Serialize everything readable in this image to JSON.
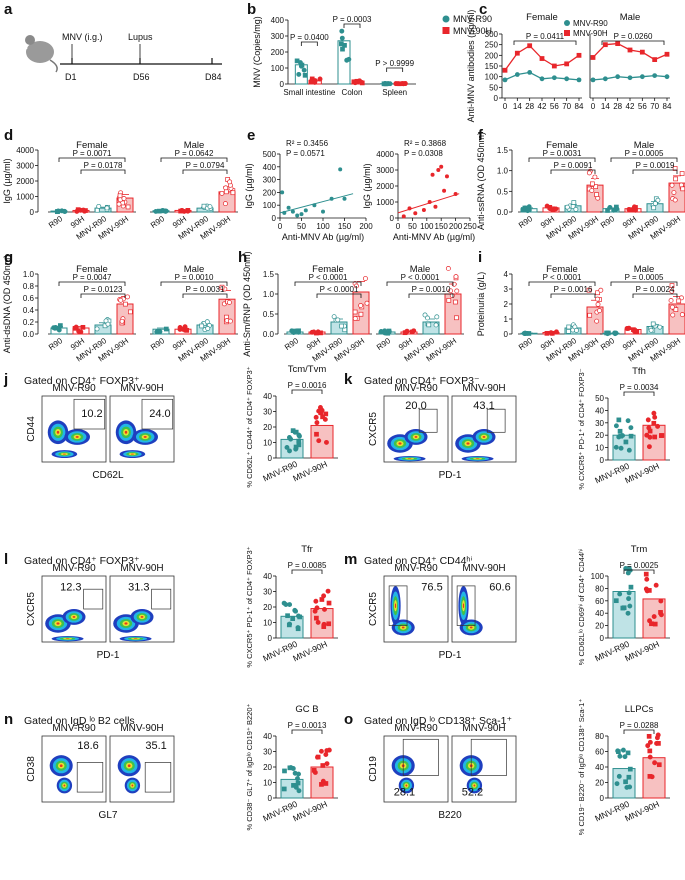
{
  "colors": {
    "r90": "#2e8f8f",
    "h90": "#e8262b",
    "r90_fill": "#bfe3e6",
    "h90_fill": "#f7c1c1"
  },
  "panel_a": {
    "label": "a",
    "route": "MNV (i.g.)",
    "event": "Lupus",
    "days": [
      "D1",
      "D56",
      "D84"
    ]
  },
  "chart_data": [
    {
      "id": "b",
      "label": "b",
      "type": "bar",
      "ylabel": "MNV (Copies/mg)",
      "ylim": [
        0,
        400
      ],
      "yticks": [
        "0",
        "100",
        "200",
        "300",
        "400"
      ],
      "categories": [
        "Small intestine",
        "Colon",
        "Spleen"
      ],
      "series": [
        {
          "name": "MNV-R90",
          "values": [
            120,
            270,
            2
          ]
        },
        {
          "name": "MNV-90H",
          "values": [
            20,
            15,
            2
          ]
        }
      ],
      "pvalues": [
        "P = 0.0400",
        "P = 0.0003",
        "P > 0.9999"
      ]
    },
    {
      "id": "c",
      "label": "c",
      "type": "line",
      "ylabel": "Anti-MNV antibodies (µg/ml)",
      "ylim": [
        0,
        300
      ],
      "yticks": [
        "0",
        "50",
        "100",
        "150",
        "200",
        "250",
        "300"
      ],
      "xticks": [
        "0",
        "14",
        "28",
        "42",
        "56",
        "70",
        "84"
      ],
      "groups": [
        "Female",
        "Male"
      ],
      "legend": [
        "MNV-R90",
        "MNV-90H"
      ],
      "pvalues": [
        "P = 0.0411",
        "P = 0.0260"
      ],
      "series": [
        {
          "name": "Female MNV-R90",
          "values": [
            85,
            110,
            120,
            90,
            95,
            90,
            85
          ]
        },
        {
          "name": "Female MNV-90H",
          "values": [
            130,
            210,
            245,
            185,
            150,
            160,
            200
          ]
        },
        {
          "name": "Male MNV-R90",
          "values": [
            85,
            90,
            100,
            95,
            100,
            105,
            100
          ]
        },
        {
          "name": "Male MNV-90H",
          "values": [
            190,
            250,
            255,
            225,
            215,
            180,
            205
          ]
        }
      ]
    },
    {
      "id": "d",
      "label": "d",
      "type": "bar",
      "ylabel": "IgG (µg/ml)",
      "ylim": [
        0,
        4000
      ],
      "yticks": [
        "0",
        "1000",
        "2000",
        "3000",
        "4000"
      ],
      "groups": [
        "Female",
        "Male"
      ],
      "categories": [
        "R90",
        "90H",
        "MNV-R90",
        "MNV-90H"
      ],
      "values": [
        [
          60,
          100,
          250,
          900
        ],
        [
          80,
          100,
          250,
          1300
        ]
      ],
      "pvalues": [
        "P = 0.0071",
        "P = 0.0178",
        "P = 0.0642",
        "P = 0.0794"
      ]
    },
    {
      "id": "e",
      "label": "e",
      "type": "scatter",
      "ylabel": "IgG (µg/ml)",
      "xlabel": "Anti-MNV Ab (µg/ml)",
      "plots": [
        {
          "r2": "R² = 0.3456",
          "p": "P = 0.0571",
          "xlim": [
            0,
            200
          ],
          "ylim": [
            0,
            500
          ],
          "xticks": [
            "0",
            "50",
            "100",
            "150",
            "200"
          ],
          "yticks": [
            "0",
            "100",
            "200",
            "300",
            "400",
            "500"
          ],
          "x": [
            5,
            10,
            20,
            30,
            40,
            50,
            60,
            80,
            100,
            120,
            140,
            150
          ],
          "y": [
            200,
            40,
            80,
            50,
            20,
            30,
            60,
            100,
            50,
            150,
            380,
            150
          ]
        },
        {
          "r2": "R² = 0.3868",
          "p": "P = 0.0308",
          "xlim": [
            0,
            250
          ],
          "ylim": [
            0,
            4000
          ],
          "xticks": [
            "0",
            "50",
            "100",
            "150",
            "200",
            "250"
          ],
          "yticks": [
            "0",
            "1000",
            "2000",
            "3000",
            "4000"
          ],
          "x": [
            20,
            40,
            60,
            90,
            110,
            120,
            130,
            140,
            150,
            160,
            170,
            200
          ],
          "y": [
            100,
            600,
            300,
            500,
            1000,
            2700,
            700,
            3000,
            3200,
            1700,
            2600,
            1500
          ]
        }
      ]
    },
    {
      "id": "f",
      "label": "f",
      "type": "bar",
      "ylabel": "Anti-ssRNA (OD 450nm)",
      "ylim": [
        0,
        1.5
      ],
      "yticks": [
        "0.0",
        "0.5",
        "1.0",
        "1.5"
      ],
      "groups": [
        "Female",
        "Male"
      ],
      "categories": [
        "R90",
        "90H",
        "MNV-R90",
        "MNV-90H"
      ],
      "values": [
        [
          0.08,
          0.1,
          0.15,
          0.65
        ],
        [
          0.08,
          0.08,
          0.2,
          0.7
        ]
      ],
      "pvalues": [
        "P = 0.0031",
        "P = 0.0091",
        "P = 0.0005",
        "P = 0.0019"
      ]
    },
    {
      "id": "g",
      "label": "g",
      "type": "bar",
      "ylabel": "Anti-dsDNA (OD 450nm)",
      "ylim": [
        0,
        1.0
      ],
      "yticks": [
        "0.0",
        "0.2",
        "0.4",
        "0.6",
        "0.8",
        "1.0"
      ],
      "groups": [
        "Female",
        "Male"
      ],
      "categories": [
        "R90",
        "90H",
        "MNV-R90",
        "MNV-90H"
      ],
      "values": [
        [
          0.1,
          0.1,
          0.15,
          0.5
        ],
        [
          0.08,
          0.08,
          0.15,
          0.58
        ]
      ],
      "pvalues": [
        "P = 0.0047",
        "P = 0.0123",
        "P = 0.0010",
        "P = 0.0031"
      ]
    },
    {
      "id": "h",
      "label": "h",
      "type": "bar",
      "ylabel": "Anti-Sm/RNP (OD 450nm)",
      "ylim": [
        0,
        1.5
      ],
      "yticks": [
        "0.0",
        "0.5",
        "1.0",
        "1.5"
      ],
      "groups": [
        "Female",
        "Male"
      ],
      "categories": [
        "R90",
        "90H",
        "MNV-R90",
        "MNV-90H"
      ],
      "values": [
        [
          0.05,
          0.05,
          0.3,
          1.05
        ],
        [
          0.05,
          0.05,
          0.3,
          1.0
        ]
      ],
      "pvalues": [
        "P < 0.0001",
        "P < 0.0001",
        "P < 0.0001",
        "P = 0.0010"
      ]
    },
    {
      "id": "i",
      "label": "i",
      "type": "bar",
      "ylabel": "Proteinuria (g/L)",
      "ylim": [
        0,
        4
      ],
      "yticks": [
        "0",
        "1",
        "2",
        "3",
        "4"
      ],
      "groups": [
        "Female",
        "Male"
      ],
      "categories": [
        "R90",
        "90H",
        "MNV-R90",
        "MNV-90H"
      ],
      "values": [
        [
          0.05,
          0.1,
          0.4,
          1.8
        ],
        [
          0.05,
          0.3,
          0.5,
          2.0
        ]
      ],
      "pvalues": [
        "P < 0.0001",
        "P = 0.0016",
        "P = 0.0005",
        "P = 0.0024"
      ]
    },
    {
      "id": "j",
      "label": "j",
      "type": "bar",
      "gate": "Gated on CD4⁺ FOXP3⁺",
      "title": "Tcm/Tvm",
      "p": "P = 0.0016",
      "xaxis": "CD62L",
      "yaxis": "CD44",
      "flow": [
        "10.2",
        "24.0"
      ],
      "ylabel": "% CD62L⁺ CD44⁺ of CD4⁺ FOXP3⁺",
      "ylim": [
        0,
        40
      ],
      "yticks": [
        "0",
        "10",
        "20",
        "30",
        "40"
      ],
      "categories": [
        "MNV-R90",
        "MNV-90H"
      ],
      "values": [
        12,
        21
      ]
    },
    {
      "id": "k",
      "label": "k",
      "type": "bar",
      "gate": "Gated on CD4⁺ FOXP3⁻",
      "title": "Tfh",
      "p": "P = 0.0034",
      "xaxis": "PD-1",
      "yaxis": "CXCR5",
      "flow": [
        "20.0",
        "43.1"
      ],
      "ylabel": "% CXCR5⁺ PD-1⁺ of CD4⁺ FOXP3⁻",
      "ylim": [
        0,
        50
      ],
      "yticks": [
        "0",
        "10",
        "20",
        "30",
        "40",
        "50"
      ],
      "categories": [
        "MNV-R90",
        "MNV-90H"
      ],
      "values": [
        20,
        28
      ]
    },
    {
      "id": "l",
      "label": "l",
      "type": "bar",
      "gate": "Gated on CD4⁺ FOXP3⁺",
      "title": "Tfr",
      "p": "P = 0.0085",
      "xaxis": "PD-1",
      "yaxis": "CXCR5",
      "flow": [
        "12.3",
        "31.3"
      ],
      "ylabel": "% CXCR5⁺ PD-1⁺ of CD4⁺ FOXP3⁺",
      "ylim": [
        0,
        40
      ],
      "yticks": [
        "0",
        "10",
        "20",
        "30",
        "40"
      ],
      "categories": [
        "MNV-R90",
        "MNV-90H"
      ],
      "values": [
        14,
        19
      ]
    },
    {
      "id": "m",
      "label": "m",
      "type": "bar",
      "gate": "Gated on CD4⁺ CD44ʰⁱ",
      "title": "Trm",
      "p": "P = 0.0025",
      "xaxis": "PD-1",
      "yaxis": "CXCR5",
      "flow": [
        "76.5",
        "60.6"
      ],
      "ylabel": "% CD62Lˡᵒ CD69ʰⁱ of CD4⁺ CD44ʰⁱ",
      "ylim": [
        0,
        100
      ],
      "yticks": [
        "0",
        "20",
        "40",
        "60",
        "80",
        "100"
      ],
      "categories": [
        "MNV-R90",
        "MNV-90H"
      ],
      "values": [
        75,
        63
      ]
    },
    {
      "id": "n",
      "label": "n",
      "type": "bar",
      "gate": "Gated on IgD ˡᵒ B2 cells",
      "title": "GC B",
      "p": "P = 0.0013",
      "xaxis": "GL7",
      "yaxis": "CD38",
      "flow": [
        "18.6",
        "35.1"
      ],
      "ylabel": "% CD38⁻ GL7⁺ of IgDˡᵒ CD19⁺ B220⁺",
      "ylim": [
        0,
        40
      ],
      "yticks": [
        "0",
        "10",
        "20",
        "30",
        "40"
      ],
      "categories": [
        "MNV-R90",
        "MNV-90H"
      ],
      "values": [
        12,
        20
      ]
    },
    {
      "id": "o",
      "label": "o",
      "type": "bar",
      "gate": "Gated on IgD ˡᵒ CD138⁺ Sca-1⁺",
      "title": "LLPCs",
      "p": "P = 0.0288",
      "xaxis": "B220",
      "yaxis": "CD19",
      "flow": [
        "28.1",
        "52.2"
      ],
      "ylabel": "% CD19⁻ B220⁻ of IgDˡᵒ CD138⁺ Sca-1⁺",
      "ylim": [
        0,
        80
      ],
      "yticks": [
        "0",
        "20",
        "40",
        "60",
        "80"
      ],
      "categories": [
        "MNV-R90",
        "MNV-90H"
      ],
      "values": [
        38,
        52
      ]
    }
  ]
}
